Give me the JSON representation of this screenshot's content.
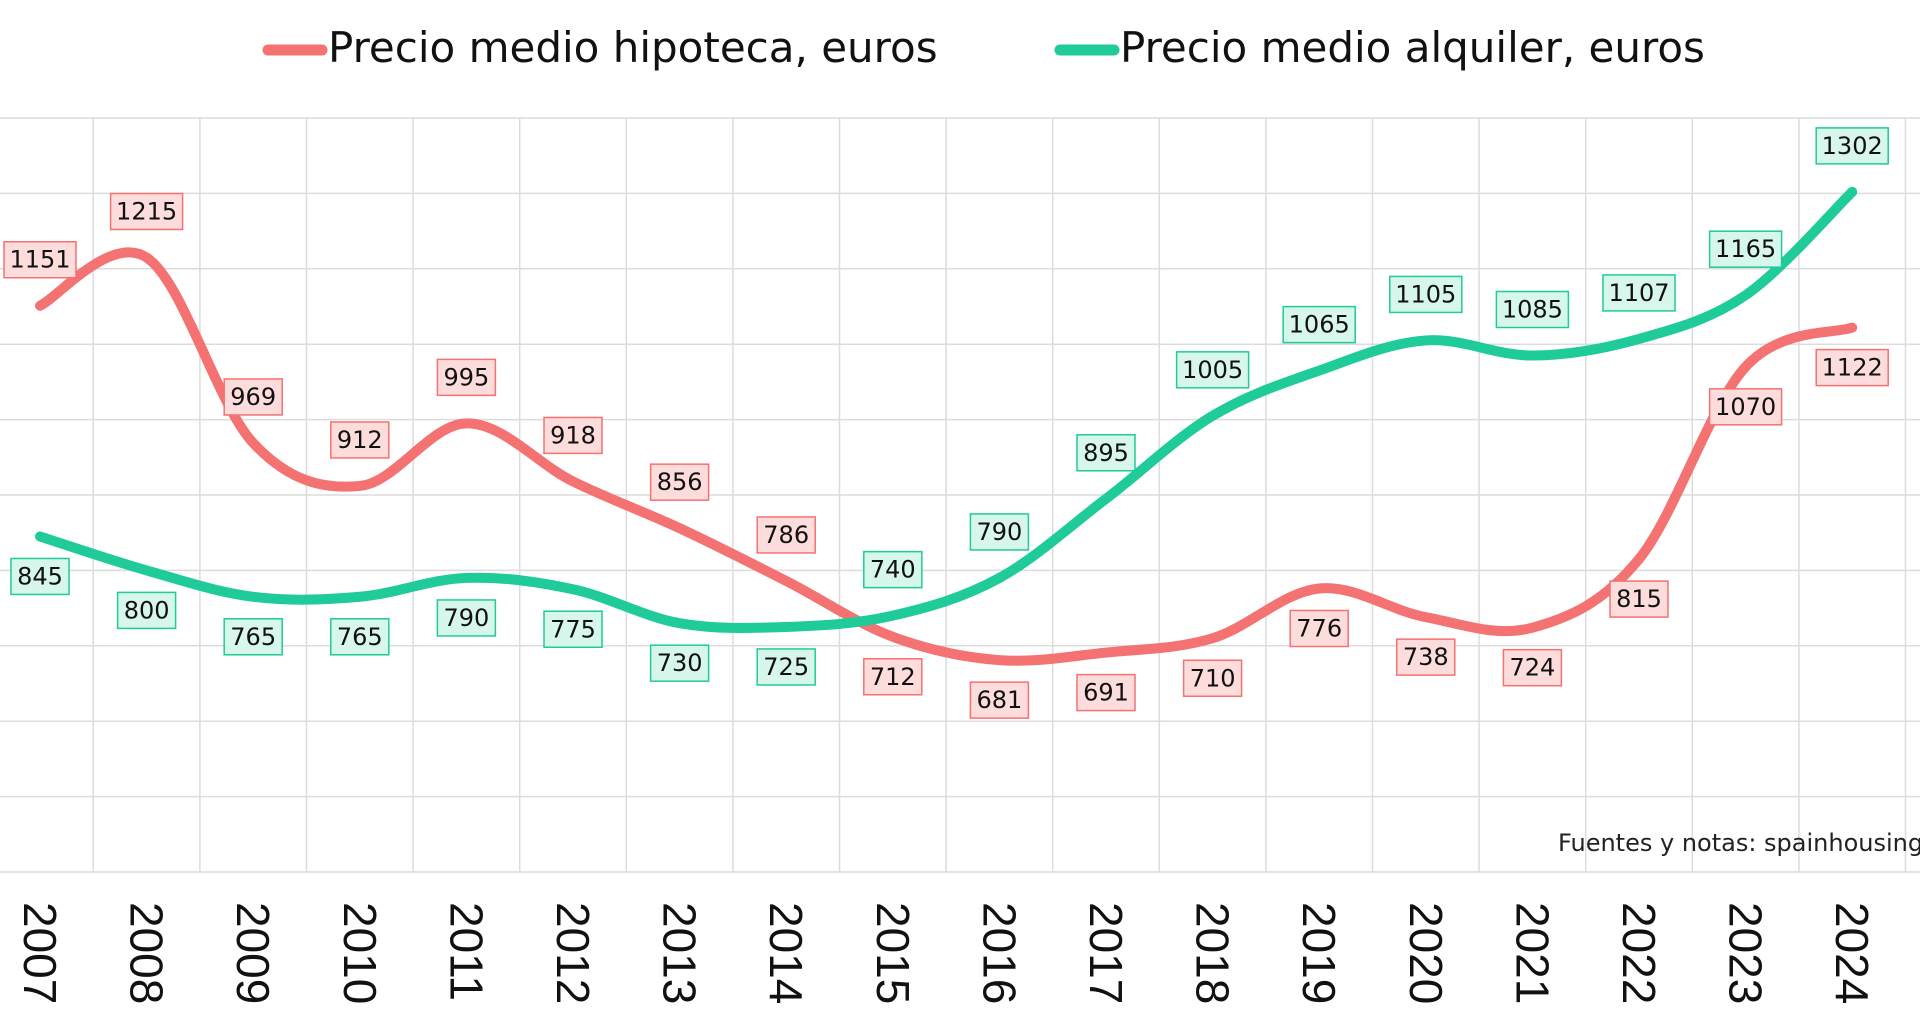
{
  "chart_data": {
    "type": "line",
    "title": "",
    "xlabel": "",
    "ylabel": "",
    "x": [
      "2007",
      "2008",
      "2009",
      "2010",
      "2011",
      "2012",
      "2013",
      "2014",
      "2015",
      "2016",
      "2017",
      "2018",
      "2019",
      "2020",
      "2021",
      "2022",
      "2023",
      "2024"
    ],
    "ylim": [
      400,
      1400
    ],
    "grid": true,
    "legend_position": "top",
    "series": [
      {
        "name": "Precio medio hipoteca, euros",
        "color": "#f47272",
        "label_fill": "#fddcdc",
        "values": [
          1151,
          1215,
          969,
          912,
          995,
          918,
          856,
          786,
          712,
          681,
          691,
          710,
          776,
          738,
          724,
          815,
          1070,
          1122
        ]
      },
      {
        "name": "Precio medio alquiler, euros",
        "color": "#1fcb98",
        "label_fill": "#d8f7ec",
        "values": [
          845,
          800,
          765,
          765,
          790,
          775,
          730,
          725,
          740,
          790,
          895,
          1005,
          1065,
          1105,
          1085,
          1107,
          1165,
          1302
        ]
      }
    ]
  },
  "source_note": "Fuentes y notas: spainhousing."
}
